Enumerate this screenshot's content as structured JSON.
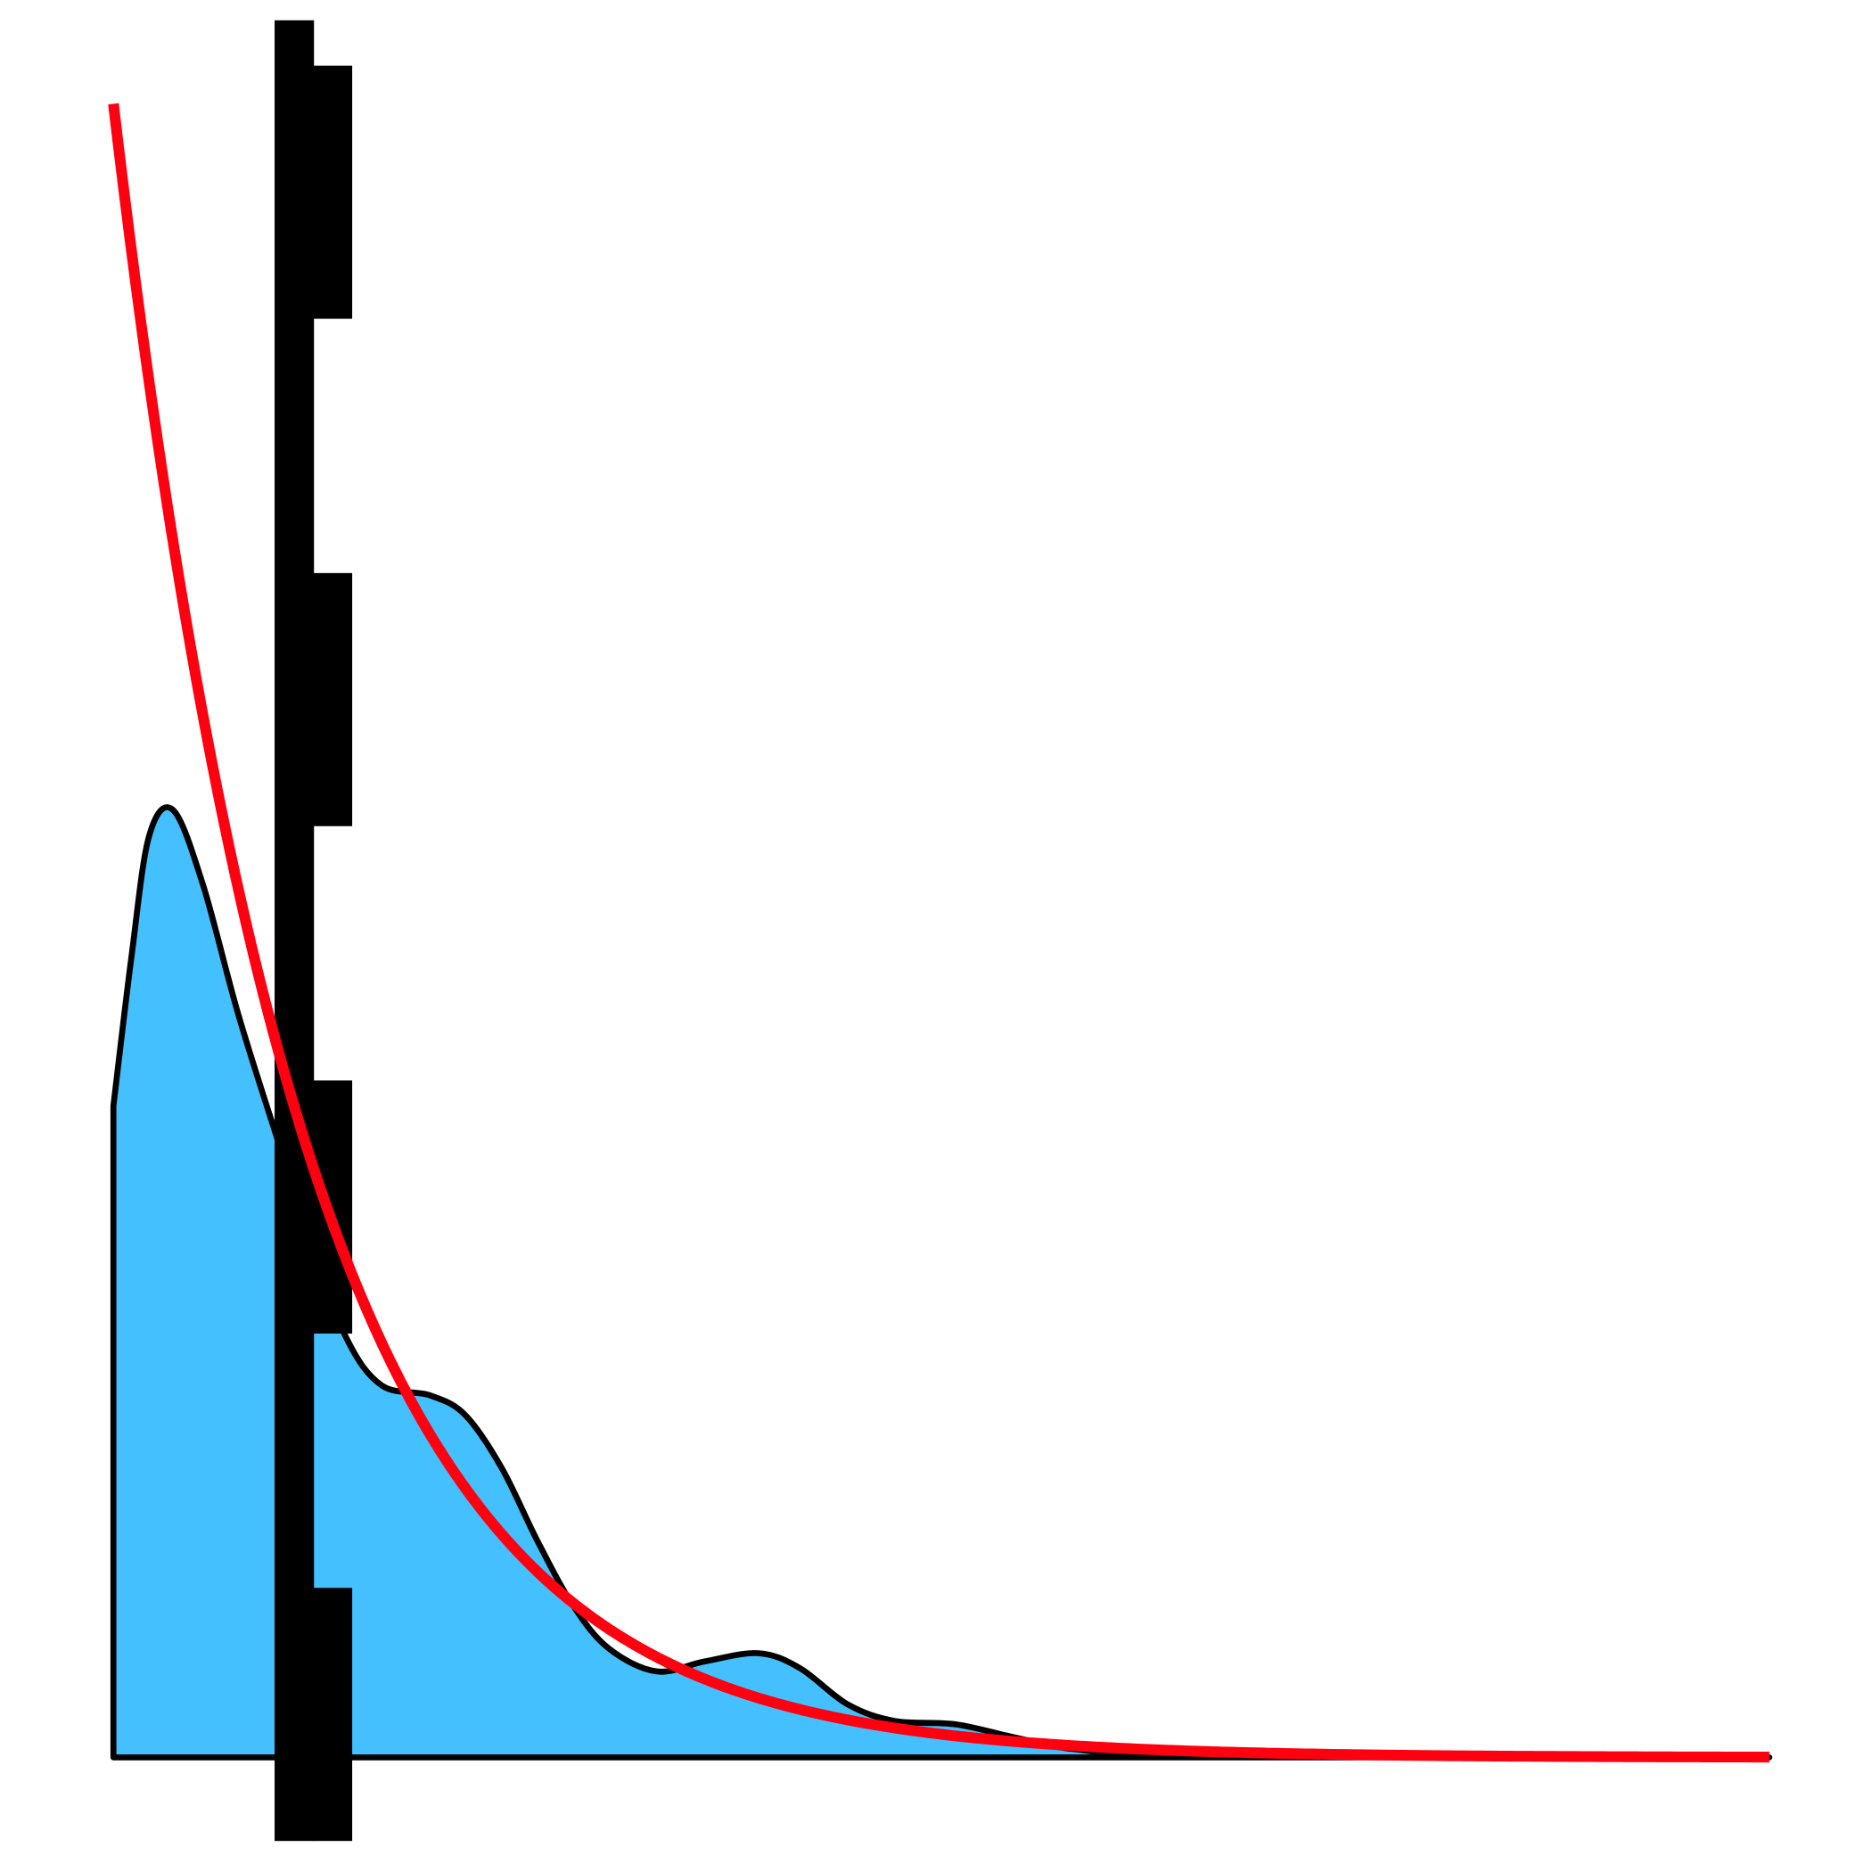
{
  "chart_data": {
    "type": "area",
    "title": "",
    "xlabel": "",
    "ylabel": "",
    "xlim": [
      0,
      20
    ],
    "ylim": [
      0,
      1
    ],
    "grid": false,
    "axes_visible": false,
    "series": [
      {
        "kind": "density-area",
        "fill_color": "#44C0FF",
        "line_color": "#000000",
        "x": [
          0,
          0.22,
          0.43,
          0.72,
          1.08,
          1.51,
          1.98,
          2.38,
          2.81,
          3.24,
          3.82,
          4.25,
          4.69,
          5.12,
          5.55,
          5.98,
          6.56,
          7.14,
          7.79,
          8.29,
          8.87,
          9.44,
          10.17,
          10.89,
          11.61,
          13.05,
          20
        ],
        "y": [
          0.394,
          0.485,
          0.557,
          0.573,
          0.528,
          0.449,
          0.374,
          0.312,
          0.254,
          0.225,
          0.219,
          0.207,
          0.175,
          0.131,
          0.092,
          0.066,
          0.052,
          0.058,
          0.063,
          0.054,
          0.032,
          0.022,
          0.02,
          0.012,
          0.005,
          0.0014,
          0
        ]
      },
      {
        "kind": "exponential-line",
        "line_color": "#FF0010",
        "amplitude": 1.0,
        "rate": 0.427
      }
    ],
    "bar_color": "#000000"
  }
}
